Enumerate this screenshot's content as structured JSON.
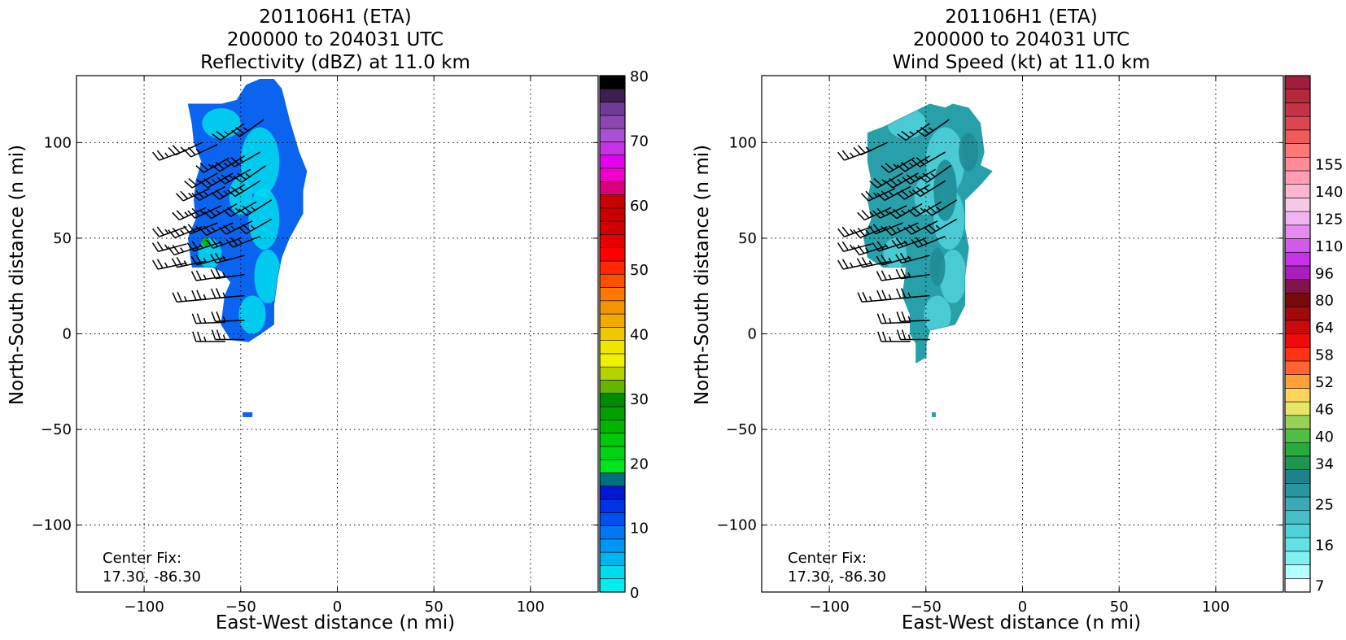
{
  "chart_data": [
    {
      "type": "heatmap",
      "title_lines": [
        "201106H1 (ETA)",
        "200000 to 204031 UTC",
        "Reflectivity (dBZ) at 11.0 km"
      ],
      "xlabel": "East-West distance (n mi)",
      "ylabel": "North-South distance (n mi)",
      "xlim": [
        -135,
        135
      ],
      "ylim": [
        -135,
        135
      ],
      "xticks": [
        -100,
        -50,
        0,
        50,
        100
      ],
      "yticks": [
        -100,
        -50,
        0,
        50,
        100
      ],
      "grid": true,
      "annotation": [
        "Center Fix:",
        "17.30, -86.30"
      ],
      "colorbar": {
        "min": 0,
        "max": 80,
        "ticks": [
          0,
          10,
          20,
          30,
          40,
          50,
          60,
          70,
          80
        ],
        "colors": [
          "#00eeee",
          "#00dcee",
          "#00b4f0",
          "#0096f5",
          "#0078f5",
          "#0050f0",
          "#0032e6",
          "#0018d2",
          "#007080",
          "#00e61e",
          "#00d214",
          "#00c80a",
          "#00b400",
          "#00a000",
          "#008c00",
          "#64b400",
          "#b4d200",
          "#f0f000",
          "#f0e600",
          "#f0c800",
          "#f0aa00",
          "#f09600",
          "#ff7800",
          "#ff5000",
          "#ff2800",
          "#ff0000",
          "#e60000",
          "#d20000",
          "#c80000",
          "#c80000",
          "#dc0078",
          "#f000c8",
          "#e600f0",
          "#c832e6",
          "#aa50d2",
          "#8c46b4",
          "#6e3c96",
          "#3c1e50",
          "#000000"
        ]
      },
      "field": {
        "description_colors": {
          "bg": "#0a64f0",
          "light": "#00dcee",
          "green": "#00b400"
        },
        "echo_outline": [
          [
            -77,
            120
          ],
          [
            -60,
            120
          ],
          [
            -52,
            122
          ],
          [
            -47,
            130
          ],
          [
            -40,
            133
          ],
          [
            -33,
            133
          ],
          [
            -29,
            128
          ],
          [
            -25,
            112
          ],
          [
            -20,
            95
          ],
          [
            -16,
            85
          ],
          [
            -18,
            75
          ],
          [
            -18,
            63
          ],
          [
            -25,
            50
          ],
          [
            -29,
            40
          ],
          [
            -31,
            30
          ],
          [
            -33,
            15
          ],
          [
            -33,
            5
          ],
          [
            -40,
            0
          ],
          [
            -46,
            -4
          ],
          [
            -55,
            -3
          ],
          [
            -60,
            5
          ],
          [
            -58,
            20
          ],
          [
            -55,
            27
          ],
          [
            -60,
            33
          ],
          [
            -65,
            35
          ],
          [
            -75,
            35
          ],
          [
            -77,
            50
          ],
          [
            -73,
            60
          ],
          [
            -74,
            70
          ],
          [
            -73,
            80
          ],
          [
            -70,
            90
          ],
          [
            -74,
            100
          ],
          [
            -75,
            110
          ]
        ]
      },
      "wind_barbs": [
        {
          "x": -78,
          "y": 96,
          "kt": 25,
          "dir": 250
        },
        {
          "x": -70,
          "y": 100,
          "kt": 25,
          "dir": 245
        },
        {
          "x": -62,
          "y": 99,
          "kt": 25,
          "dir": 245
        },
        {
          "x": -48,
          "y": 110,
          "kt": 25,
          "dir": 235
        },
        {
          "x": -38,
          "y": 112,
          "kt": 25,
          "dir": 235
        },
        {
          "x": -56,
          "y": 92,
          "kt": 25,
          "dir": 240
        },
        {
          "x": -48,
          "y": 93,
          "kt": 25,
          "dir": 238
        },
        {
          "x": -40,
          "y": 95,
          "kt": 25,
          "dir": 240
        },
        {
          "x": -62,
          "y": 84,
          "kt": 25,
          "dir": 240
        },
        {
          "x": -54,
          "y": 84,
          "kt": 25,
          "dir": 240
        },
        {
          "x": -45,
          "y": 86,
          "kt": 25,
          "dir": 240
        },
        {
          "x": -37,
          "y": 88,
          "kt": 25,
          "dir": 235
        },
        {
          "x": -66,
          "y": 76,
          "kt": 25,
          "dir": 245
        },
        {
          "x": -58,
          "y": 77,
          "kt": 25,
          "dir": 242
        },
        {
          "x": -48,
          "y": 78,
          "kt": 25,
          "dir": 240
        },
        {
          "x": -40,
          "y": 80,
          "kt": 25,
          "dir": 238
        },
        {
          "x": -68,
          "y": 66,
          "kt": 25,
          "dir": 245
        },
        {
          "x": -60,
          "y": 67,
          "kt": 25,
          "dir": 245
        },
        {
          "x": -52,
          "y": 68,
          "kt": 25,
          "dir": 240
        },
        {
          "x": -42,
          "y": 69,
          "kt": 25,
          "dir": 240
        },
        {
          "x": -34,
          "y": 70,
          "kt": 25,
          "dir": 238
        },
        {
          "x": -70,
          "y": 56,
          "kt": 25,
          "dir": 248
        },
        {
          "x": -62,
          "y": 58,
          "kt": 25,
          "dir": 248
        },
        {
          "x": -54,
          "y": 58,
          "kt": 25,
          "dir": 245
        },
        {
          "x": -44,
          "y": 59,
          "kt": 25,
          "dir": 243
        },
        {
          "x": -34,
          "y": 60,
          "kt": 25,
          "dir": 240
        },
        {
          "x": -78,
          "y": 56,
          "kt": 25,
          "dir": 250
        },
        {
          "x": -78,
          "y": 47,
          "kt": 25,
          "dir": 255
        },
        {
          "x": -70,
          "y": 46,
          "kt": 25,
          "dir": 252
        },
        {
          "x": -60,
          "y": 48,
          "kt": 25,
          "dir": 252
        },
        {
          "x": -50,
          "y": 50,
          "kt": 25,
          "dir": 250
        },
        {
          "x": -40,
          "y": 51,
          "kt": 25,
          "dir": 248
        },
        {
          "x": -78,
          "y": 37,
          "kt": 25,
          "dir": 258
        },
        {
          "x": -68,
          "y": 38,
          "kt": 25,
          "dir": 258
        },
        {
          "x": -58,
          "y": 40,
          "kt": 25,
          "dir": 255
        },
        {
          "x": -48,
          "y": 41,
          "kt": 25,
          "dir": 255
        },
        {
          "x": -58,
          "y": 30,
          "kt": 25,
          "dir": 262
        },
        {
          "x": -48,
          "y": 31,
          "kt": 25,
          "dir": 262
        },
        {
          "x": -68,
          "y": 18,
          "kt": 25,
          "dir": 265
        },
        {
          "x": -58,
          "y": 19,
          "kt": 25,
          "dir": 265
        },
        {
          "x": -48,
          "y": 20,
          "kt": 25,
          "dir": 265
        },
        {
          "x": -58,
          "y": 6,
          "kt": 25,
          "dir": 268
        },
        {
          "x": -48,
          "y": 7,
          "kt": 25,
          "dir": 268
        },
        {
          "x": -58,
          "y": -4,
          "kt": 25,
          "dir": 270
        },
        {
          "x": -48,
          "y": -3,
          "kt": 25,
          "dir": 270
        }
      ]
    },
    {
      "type": "heatmap",
      "title_lines": [
        "201106H1 (ETA)",
        "200000 to 204031 UTC",
        "Wind Speed (kt) at 11.0 km"
      ],
      "xlabel": "East-West distance (n mi)",
      "ylabel": "North-South distance (n mi)",
      "xlim": [
        -135,
        135
      ],
      "ylim": [
        -135,
        135
      ],
      "xticks": [
        -100,
        -50,
        0,
        50,
        100
      ],
      "yticks": [
        -100,
        -50,
        0,
        50,
        100
      ],
      "grid": true,
      "annotation": [
        "Center Fix:",
        "17.30, -86.30"
      ],
      "colorbar": {
        "min": 7,
        "max": 160,
        "tick_labels": [
          {
            "label": "7",
            "index": 0
          },
          {
            "label": "16",
            "index": 3
          },
          {
            "label": "25",
            "index": 6
          },
          {
            "label": "34",
            "index": 9
          },
          {
            "label": "40",
            "index": 11
          },
          {
            "label": "46",
            "index": 13
          },
          {
            "label": "52",
            "index": 15
          },
          {
            "label": "58",
            "index": 17
          },
          {
            "label": "64",
            "index": 19
          },
          {
            "label": "80",
            "index": 21
          },
          {
            "label": "96",
            "index": 23
          },
          {
            "label": "110",
            "index": 25
          },
          {
            "label": "125",
            "index": 27
          },
          {
            "label": "140",
            "index": 29
          },
          {
            "label": "155",
            "index": 31
          }
        ],
        "colors": [
          "#ffffff",
          "#b4ffff",
          "#82f0f0",
          "#64e1e6",
          "#50d2dc",
          "#46bec8",
          "#3caab4",
          "#2896a0",
          "#1e828c",
          "#1e9650",
          "#28aa3c",
          "#50be46",
          "#96d25a",
          "#e6e664",
          "#ffd25a",
          "#ffa03c",
          "#ff6432",
          "#ff3214",
          "#f00a0a",
          "#c80a0a",
          "#a00a0a",
          "#780a0a",
          "#82144b",
          "#aa1ebe",
          "#c832e6",
          "#d25aeb",
          "#e68cf0",
          "#f0b4f0",
          "#f5c8e6",
          "#ffb4d2",
          "#ff9eb4",
          "#ff8c96",
          "#ff7878",
          "#f05a5a",
          "#dc4650",
          "#c83246",
          "#b4283c",
          "#a01e3c"
        ]
      },
      "field": {
        "description_colors": {
          "bg": "#28a0aa",
          "light": "#50d2dc",
          "dark": "#1e8c96"
        },
        "echo_outline": [
          [
            -80,
            105
          ],
          [
            -72,
            108
          ],
          [
            -64,
            112
          ],
          [
            -56,
            116
          ],
          [
            -48,
            120
          ],
          [
            -40,
            118
          ],
          [
            -36,
            120
          ],
          [
            -28,
            118
          ],
          [
            -22,
            110
          ],
          [
            -20,
            95
          ],
          [
            -22,
            88
          ],
          [
            -16,
            85
          ],
          [
            -22,
            78
          ],
          [
            -30,
            70
          ],
          [
            -30,
            55
          ],
          [
            -28,
            45
          ],
          [
            -30,
            30
          ],
          [
            -30,
            15
          ],
          [
            -35,
            5
          ],
          [
            -48,
            2
          ],
          [
            -50,
            -5
          ],
          [
            -50,
            -12
          ],
          [
            -55,
            -15
          ],
          [
            -55,
            -5
          ],
          [
            -58,
            0
          ],
          [
            -58,
            10
          ],
          [
            -62,
            20
          ],
          [
            -60,
            35
          ],
          [
            -72,
            35
          ],
          [
            -80,
            40
          ],
          [
            -82,
            50
          ],
          [
            -78,
            60
          ],
          [
            -80,
            70
          ],
          [
            -78,
            80
          ],
          [
            -80,
            90
          ]
        ]
      },
      "wind_barbs": [
        {
          "x": -78,
          "y": 96,
          "kt": 25,
          "dir": 250
        },
        {
          "x": -70,
          "y": 100,
          "kt": 25,
          "dir": 245
        },
        {
          "x": -48,
          "y": 110,
          "kt": 25,
          "dir": 235
        },
        {
          "x": -38,
          "y": 112,
          "kt": 25,
          "dir": 235
        },
        {
          "x": -56,
          "y": 92,
          "kt": 25,
          "dir": 240
        },
        {
          "x": -48,
          "y": 93,
          "kt": 25,
          "dir": 238
        },
        {
          "x": -40,
          "y": 95,
          "kt": 25,
          "dir": 240
        },
        {
          "x": -62,
          "y": 84,
          "kt": 25,
          "dir": 240
        },
        {
          "x": -54,
          "y": 84,
          "kt": 25,
          "dir": 240
        },
        {
          "x": -45,
          "y": 86,
          "kt": 25,
          "dir": 240
        },
        {
          "x": -37,
          "y": 88,
          "kt": 25,
          "dir": 235
        },
        {
          "x": -66,
          "y": 76,
          "kt": 25,
          "dir": 245
        },
        {
          "x": -58,
          "y": 77,
          "kt": 25,
          "dir": 242
        },
        {
          "x": -48,
          "y": 78,
          "kt": 25,
          "dir": 240
        },
        {
          "x": -40,
          "y": 80,
          "kt": 25,
          "dir": 238
        },
        {
          "x": -68,
          "y": 66,
          "kt": 25,
          "dir": 245
        },
        {
          "x": -60,
          "y": 67,
          "kt": 25,
          "dir": 245
        },
        {
          "x": -52,
          "y": 68,
          "kt": 25,
          "dir": 240
        },
        {
          "x": -42,
          "y": 69,
          "kt": 25,
          "dir": 240
        },
        {
          "x": -34,
          "y": 70,
          "kt": 25,
          "dir": 238
        },
        {
          "x": -70,
          "y": 56,
          "kt": 25,
          "dir": 248
        },
        {
          "x": -62,
          "y": 58,
          "kt": 25,
          "dir": 248
        },
        {
          "x": -54,
          "y": 58,
          "kt": 25,
          "dir": 245
        },
        {
          "x": -44,
          "y": 59,
          "kt": 25,
          "dir": 243
        },
        {
          "x": -34,
          "y": 60,
          "kt": 25,
          "dir": 240
        },
        {
          "x": -78,
          "y": 56,
          "kt": 25,
          "dir": 250
        },
        {
          "x": -78,
          "y": 47,
          "kt": 25,
          "dir": 255
        },
        {
          "x": -70,
          "y": 46,
          "kt": 25,
          "dir": 252
        },
        {
          "x": -60,
          "y": 48,
          "kt": 25,
          "dir": 252
        },
        {
          "x": -50,
          "y": 50,
          "kt": 25,
          "dir": 250
        },
        {
          "x": -40,
          "y": 51,
          "kt": 25,
          "dir": 248
        },
        {
          "x": -78,
          "y": 37,
          "kt": 25,
          "dir": 258
        },
        {
          "x": -68,
          "y": 38,
          "kt": 25,
          "dir": 258
        },
        {
          "x": -58,
          "y": 40,
          "kt": 25,
          "dir": 255
        },
        {
          "x": -48,
          "y": 41,
          "kt": 25,
          "dir": 255
        },
        {
          "x": -58,
          "y": 30,
          "kt": 25,
          "dir": 262
        },
        {
          "x": -48,
          "y": 31,
          "kt": 25,
          "dir": 262
        },
        {
          "x": -68,
          "y": 18,
          "kt": 25,
          "dir": 265
        },
        {
          "x": -58,
          "y": 19,
          "kt": 25,
          "dir": 265
        },
        {
          "x": -48,
          "y": 20,
          "kt": 25,
          "dir": 265
        },
        {
          "x": -58,
          "y": 6,
          "kt": 25,
          "dir": 268
        },
        {
          "x": -48,
          "y": 7,
          "kt": 25,
          "dir": 268
        },
        {
          "x": -58,
          "y": -4,
          "kt": 25,
          "dir": 270
        },
        {
          "x": -48,
          "y": -3,
          "kt": 25,
          "dir": 270
        }
      ]
    }
  ]
}
